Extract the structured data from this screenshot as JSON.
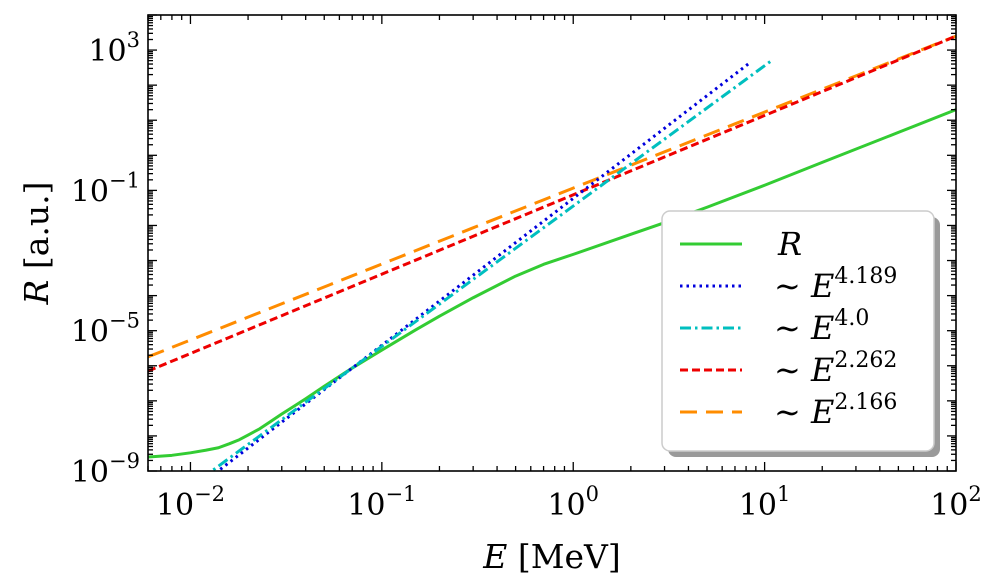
{
  "chart_data": {
    "type": "line",
    "xscale": "log",
    "yscale": "log",
    "xlim": [
      0.006,
      100
    ],
    "ylim": [
      1e-09,
      10000
    ],
    "x_ticks": [
      {
        "base": "10",
        "exp": "−2",
        "value": 0.01
      },
      {
        "base": "10",
        "exp": "−1",
        "value": 0.1
      },
      {
        "base": "10",
        "exp": "0",
        "value": 1
      },
      {
        "base": "10",
        "exp": "1",
        "value": 10
      },
      {
        "base": "10",
        "exp": "2",
        "value": 100
      }
    ],
    "y_ticks": [
      {
        "base": "10",
        "exp": "−9",
        "value": 1e-09
      },
      {
        "base": "10",
        "exp": "−5",
        "value": 1e-05
      },
      {
        "base": "10",
        "exp": "−1",
        "value": 0.1
      },
      {
        "base": "10",
        "exp": "3",
        "value": 1000
      }
    ],
    "xlabel": {
      "var": "E",
      "unit": "[MeV]"
    },
    "ylabel": {
      "var": "R",
      "unit": "[a.u.]"
    },
    "legend": {
      "placement": "lower-right",
      "prefix": "∼",
      "var": "E"
    },
    "series": [
      {
        "name": "R",
        "legend_var": "R",
        "legend_exp": "",
        "color": "#33cc33",
        "dash": "solid",
        "x": [
          0.006,
          0.008,
          0.01,
          0.012,
          0.014,
          0.016,
          0.018,
          0.02,
          0.023,
          0.026,
          0.03,
          0.035,
          0.04,
          0.05,
          0.06,
          0.07,
          0.1,
          0.15,
          0.2,
          0.3,
          0.5,
          0.7,
          1,
          2,
          3,
          5,
          10,
          20,
          50,
          100
        ],
        "y": [
          2.5e-09,
          2.8e-09,
          3.3e-09,
          3.9e-09,
          4.6e-09,
          6e-09,
          7.8e-09,
          1.06e-08,
          1.6e-08,
          2.5e-08,
          4.2e-08,
          7.2e-08,
          1.15e-07,
          2.6e-07,
          5e-07,
          8.6e-07,
          2.8e-06,
          1.05e-05,
          2.6e-05,
          8.7e-05,
          0.00036,
          0.00078,
          0.0015,
          0.0056,
          0.012,
          0.033,
          0.14,
          0.63,
          4.5,
          20
        ]
      },
      {
        "name": "∼ E^4.189",
        "legend_var": "E",
        "legend_exp": "4.189",
        "color": "#0000dd",
        "dash": "dotted",
        "fit": {
          "exponent": 4.189,
          "x_ref": 0.07,
          "y_ref": 8.6e-07
        },
        "x_range": [
          0.0068,
          8.5
        ]
      },
      {
        "name": "∼ E^4.0",
        "legend_var": "E",
        "legend_exp": "4.0",
        "color": "#00bfbf",
        "dash": "dashdot",
        "fit": {
          "exponent": 4.0,
          "x_ref": 0.07,
          "y_ref": 8.6e-07
        },
        "x_range": [
          0.0075,
          11
        ]
      },
      {
        "name": "∼ E^2.262",
        "legend_var": "E",
        "legend_exp": "2.262",
        "color": "#ee0000",
        "dash": "dashed",
        "fit": {
          "exponent": 2.262,
          "x_ref": 100,
          "y_ref": 2500
        },
        "x_range": [
          0.006,
          100
        ]
      },
      {
        "name": "∼ E^2.166",
        "legend_var": "E",
        "legend_exp": "2.166",
        "color": "#ff8c00",
        "dash": "longdash",
        "fit": {
          "exponent": 2.166,
          "x_ref": 100,
          "y_ref": 2500
        },
        "x_range": [
          0.006,
          100
        ]
      }
    ]
  }
}
